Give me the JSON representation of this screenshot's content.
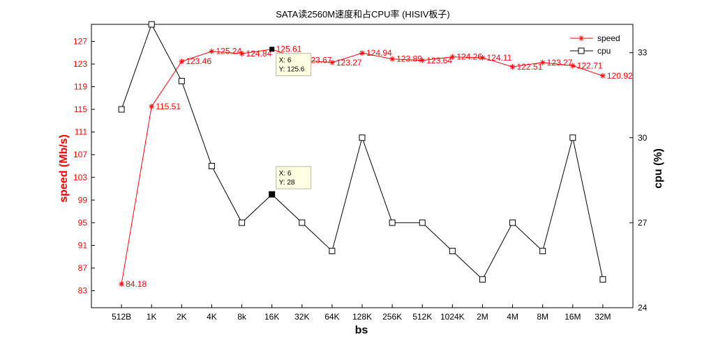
{
  "chart_data": {
    "type": "line",
    "title": "SATA读2560M速度和占CPU率 (HISIV板子)",
    "xlabel": "bs",
    "ylabel_left": "speed (Mb/s)",
    "ylabel_right": "cpu (%)",
    "categories": [
      "512B",
      "1K",
      "2K",
      "4K",
      "8k",
      "16K",
      "32K",
      "64K",
      "128K",
      "256K",
      "512K",
      "1024K",
      "2M",
      "4M",
      "8M",
      "16M",
      "32M"
    ],
    "left_axis": {
      "ylim": [
        80,
        130
      ],
      "ticks": [
        83,
        87,
        91,
        95,
        99,
        103,
        107,
        111,
        115,
        119,
        123,
        127
      ],
      "color": "#ff0000"
    },
    "right_axis": {
      "ylim": [
        24,
        34
      ],
      "ticks": [
        24,
        27,
        30,
        33
      ],
      "color": "#000000"
    },
    "series": [
      {
        "name": "speed",
        "axis": "left",
        "marker": "star",
        "color": "#ff0000",
        "values": [
          84.18,
          115.51,
          123.46,
          125.24,
          124.84,
          125.61,
          123.67,
          123.27,
          124.94,
          123.89,
          123.64,
          124.26,
          124.11,
          122.51,
          123.27,
          122.71,
          120.92
        ],
        "labels": [
          "84.18",
          "115.51",
          "123.46",
          "125.24",
          "124.84",
          "125.61",
          "123.67",
          "123.27",
          "124.94",
          "123.89",
          "123.64",
          "124.26",
          "124.11",
          "122.51",
          "123.27",
          "122.71",
          "120.92"
        ]
      },
      {
        "name": "cpu",
        "axis": "right",
        "marker": "square",
        "color": "#000000",
        "values": [
          31,
          34,
          32,
          29,
          27,
          28,
          27,
          26,
          30,
          27,
          27,
          26,
          25,
          27,
          26,
          30,
          25
        ]
      }
    ],
    "legend": {
      "placement": "top-right",
      "entries": [
        "speed",
        "cpu"
      ]
    },
    "datatips": [
      {
        "series": "speed",
        "index": 5,
        "x_text": "X: 6",
        "y_text": "Y: 125.6"
      },
      {
        "series": "cpu",
        "index": 5,
        "x_text": "X: 6",
        "y_text": "Y: 28"
      }
    ],
    "grid": false
  }
}
